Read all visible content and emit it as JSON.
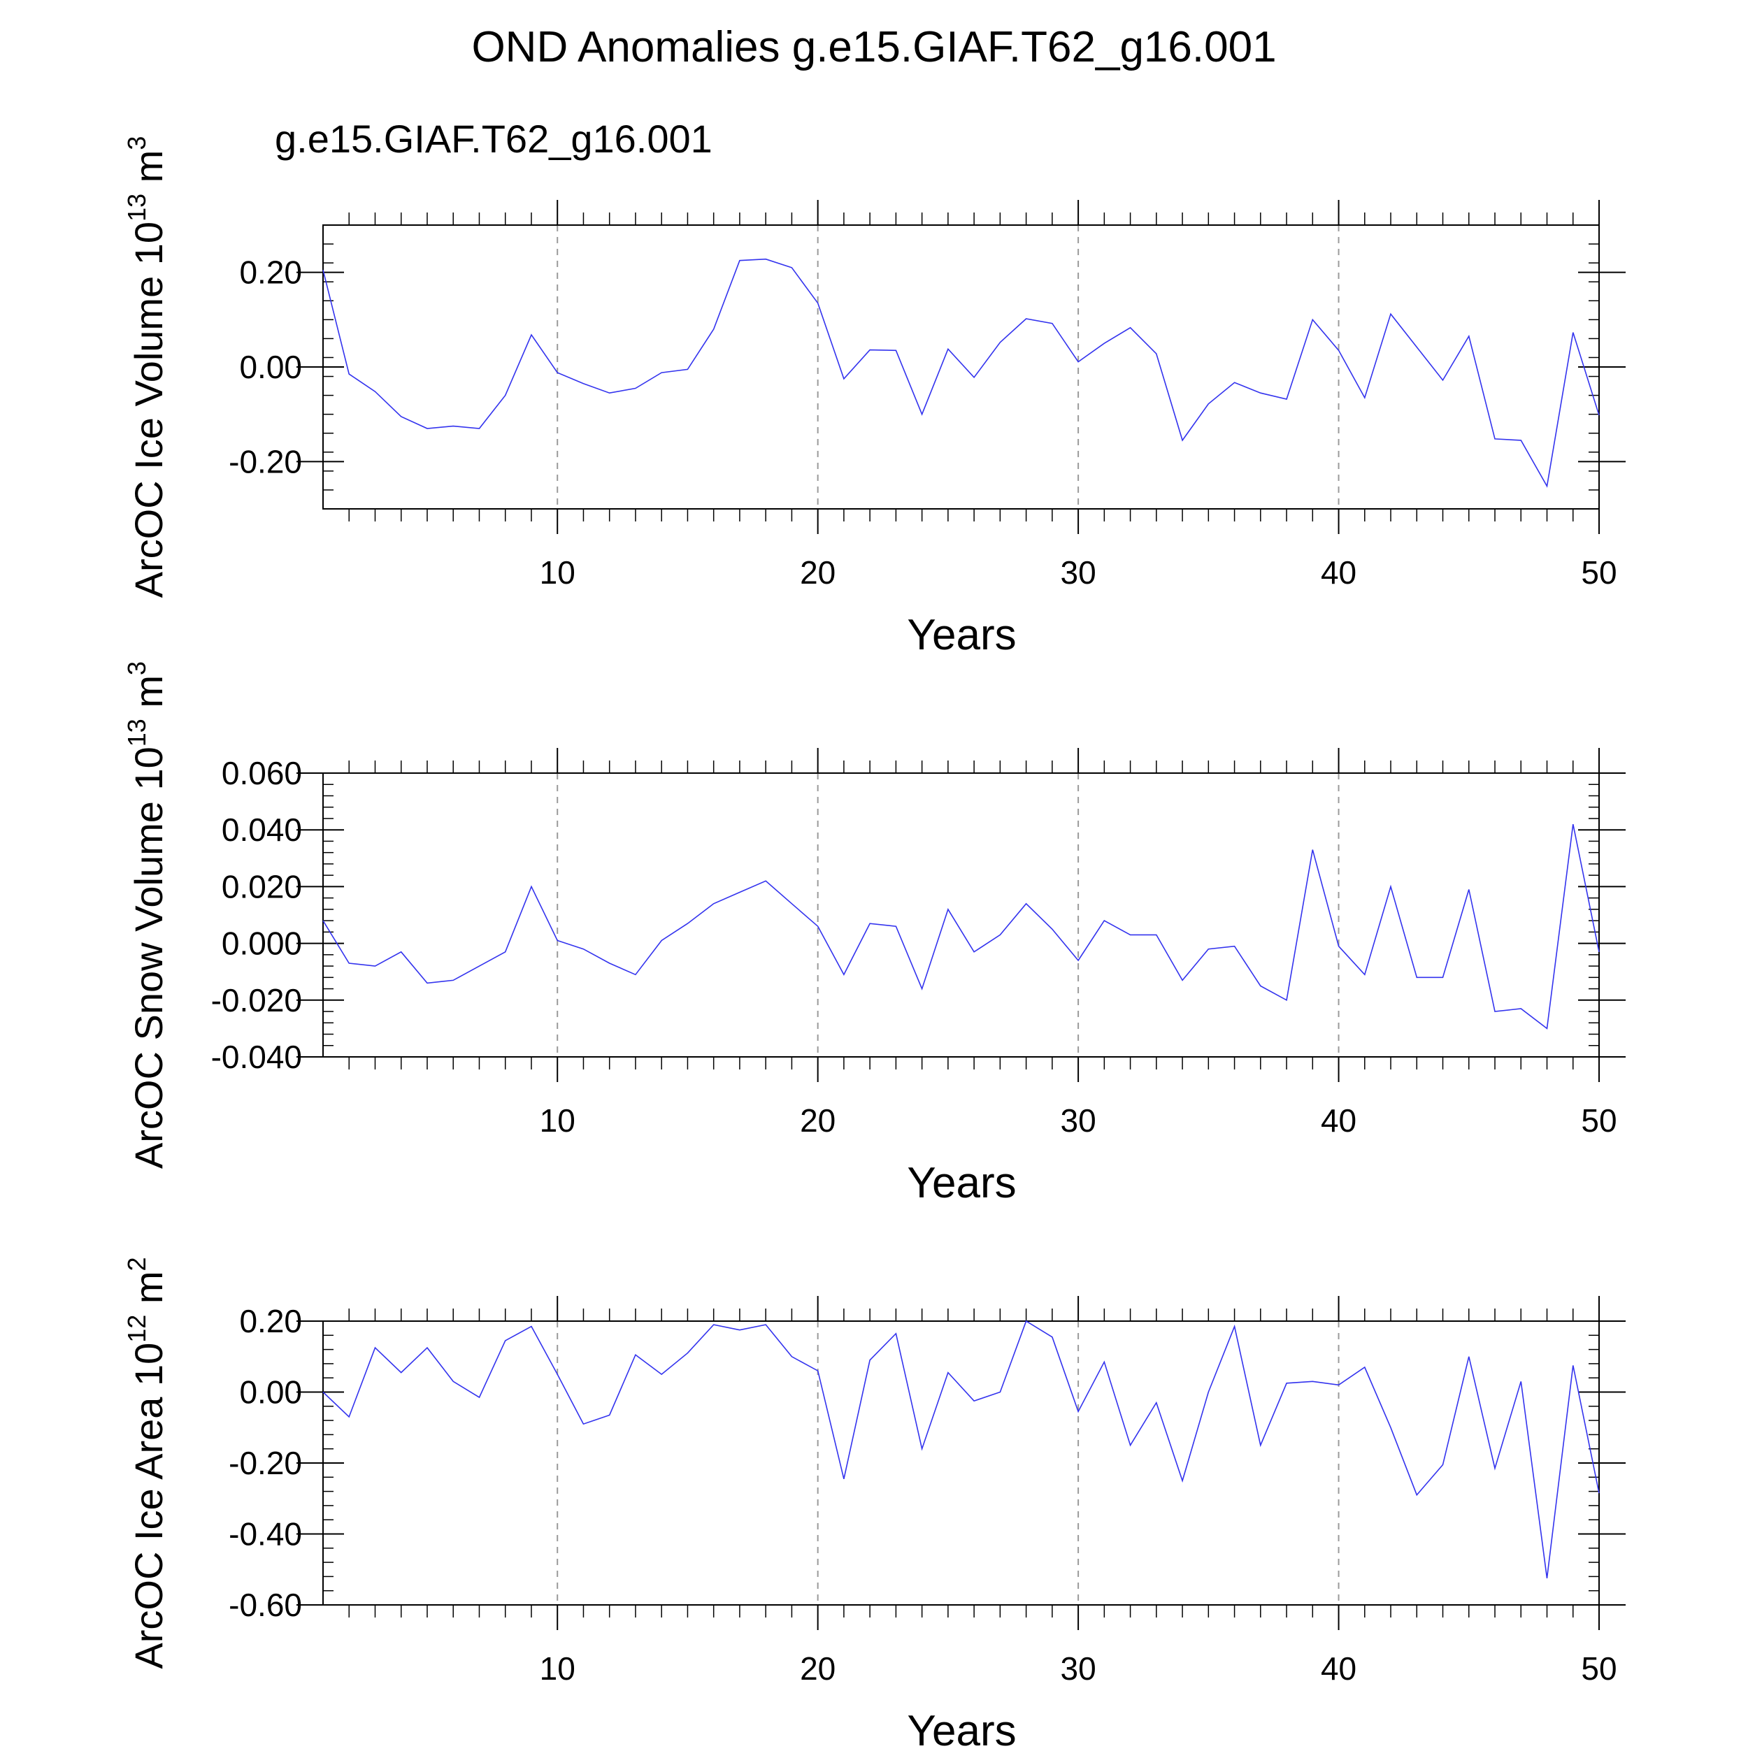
{
  "figure": {
    "title": "OND Anomalies g.e15.GIAF.T62_g16.001",
    "legend_label": "g.e15.GIAF.T62_g16.001",
    "series_color": "#3333ee",
    "legend_color": "#0000ff",
    "axis_color": "#000000",
    "grid_color": "#9a9a9a"
  },
  "chart_data": [
    {
      "type": "line",
      "title": "",
      "xlabel": "Years",
      "ylabel": "ArcOC Ice Volume 10",
      "ylabel_exp": "13",
      "ylabel_unit": " m",
      "ylabel_unit_exp": "3",
      "xlim": [
        1,
        50
      ],
      "ylim": [
        -0.3,
        0.3
      ],
      "xticks": [
        10,
        20,
        30,
        40,
        50
      ],
      "xtick_labels": [
        "10",
        "20",
        "30",
        "40",
        "50"
      ],
      "yticks": [
        -0.2,
        0.0,
        0.2
      ],
      "ytick_labels": [
        "-0.20",
        "0.00",
        "0.20"
      ],
      "y_minor_step": 0.04,
      "x": [
        1,
        2,
        3,
        4,
        5,
        6,
        7,
        8,
        9,
        10,
        11,
        12,
        13,
        14,
        15,
        16,
        17,
        18,
        19,
        20,
        21,
        22,
        23,
        24,
        25,
        26,
        27,
        28,
        29,
        30,
        31,
        32,
        33,
        34,
        35,
        36,
        37,
        38,
        39,
        40,
        41,
        42,
        43,
        44,
        45,
        46,
        47,
        48,
        49,
        50
      ],
      "series": [
        {
          "name": "g.e15.GIAF.T62_g16.001",
          "values": [
            0.205,
            -0.015,
            -0.052,
            -0.105,
            -0.13,
            -0.125,
            -0.13,
            -0.06,
            0.068,
            -0.012,
            -0.035,
            -0.055,
            -0.045,
            -0.012,
            -0.005,
            0.08,
            0.225,
            0.228,
            0.21,
            0.135,
            -0.025,
            0.036,
            0.035,
            -0.1,
            0.038,
            -0.022,
            0.052,
            0.102,
            0.092,
            0.011,
            0.05,
            0.083,
            0.028,
            -0.155,
            -0.078,
            -0.033,
            -0.055,
            -0.068,
            0.1,
            0.035,
            -0.065,
            0.112,
            0.042,
            -0.028,
            0.065,
            -0.152,
            -0.155,
            -0.252,
            0.073,
            -0.102
          ]
        }
      ]
    },
    {
      "type": "line",
      "title": "",
      "xlabel": "Years",
      "ylabel": "ArcOC Snow Volume 10",
      "ylabel_exp": "13",
      "ylabel_unit": " m",
      "ylabel_unit_exp": "3",
      "xlim": [
        1,
        50
      ],
      "ylim": [
        -0.04,
        0.06
      ],
      "xticks": [
        10,
        20,
        30,
        40,
        50
      ],
      "xtick_labels": [
        "10",
        "20",
        "30",
        "40",
        "50"
      ],
      "yticks": [
        -0.04,
        -0.02,
        0.0,
        0.02,
        0.04,
        0.06
      ],
      "ytick_labels": [
        "-0.040",
        "-0.020",
        "0.000",
        "0.020",
        "0.040",
        "0.060"
      ],
      "y_minor_step": 0.004,
      "x": [
        1,
        2,
        3,
        4,
        5,
        6,
        7,
        8,
        9,
        10,
        11,
        12,
        13,
        14,
        15,
        16,
        17,
        18,
        19,
        20,
        21,
        22,
        23,
        24,
        25,
        26,
        27,
        28,
        29,
        30,
        31,
        32,
        33,
        34,
        35,
        36,
        37,
        38,
        39,
        40,
        41,
        42,
        43,
        44,
        45,
        46,
        47,
        48,
        49,
        50
      ],
      "series": [
        {
          "name": "g.e15.GIAF.T62_g16.001",
          "values": [
            0.008,
            -0.007,
            -0.008,
            -0.003,
            -0.014,
            -0.013,
            -0.008,
            -0.003,
            0.02,
            0.001,
            -0.002,
            -0.007,
            -0.011,
            0.001,
            0.007,
            0.014,
            0.018,
            0.022,
            0.014,
            0.006,
            -0.011,
            0.007,
            0.006,
            -0.016,
            0.012,
            -0.003,
            0.003,
            0.014,
            0.005,
            -0.006,
            0.008,
            0.003,
            0.003,
            -0.013,
            -0.002,
            -0.001,
            -0.015,
            -0.02,
            0.033,
            -0.001,
            -0.011,
            0.02,
            -0.012,
            -0.012,
            0.019,
            -0.024,
            -0.023,
            -0.03,
            0.042,
            -0.003
          ]
        }
      ]
    },
    {
      "type": "line",
      "title": "",
      "xlabel": "Years",
      "ylabel": "ArcOC Ice Area 10",
      "ylabel_exp": "12",
      "ylabel_unit": " m",
      "ylabel_unit_exp": "2",
      "xlim": [
        1,
        50
      ],
      "ylim": [
        -0.6,
        0.2
      ],
      "xticks": [
        10,
        20,
        30,
        40,
        50
      ],
      "xtick_labels": [
        "10",
        "20",
        "30",
        "40",
        "50"
      ],
      "yticks": [
        -0.6,
        -0.4,
        -0.2,
        0.0,
        0.2
      ],
      "ytick_labels": [
        "-0.60",
        "-0.40",
        "-0.20",
        "0.00",
        "0.20"
      ],
      "y_minor_step": 0.04,
      "x": [
        1,
        2,
        3,
        4,
        5,
        6,
        7,
        8,
        9,
        10,
        11,
        12,
        13,
        14,
        15,
        16,
        17,
        18,
        19,
        20,
        21,
        22,
        23,
        24,
        25,
        26,
        27,
        28,
        29,
        30,
        31,
        32,
        33,
        34,
        35,
        36,
        37,
        38,
        39,
        40,
        41,
        42,
        43,
        44,
        45,
        46,
        47,
        48,
        49,
        50
      ],
      "series": [
        {
          "name": "g.e15.GIAF.T62_g16.001",
          "values": [
            0.0,
            -0.07,
            0.125,
            0.055,
            0.125,
            0.03,
            -0.015,
            0.145,
            0.185,
            0.05,
            -0.09,
            -0.065,
            0.105,
            0.05,
            0.11,
            0.19,
            0.175,
            0.19,
            0.1,
            0.06,
            -0.245,
            0.09,
            0.165,
            -0.16,
            0.055,
            -0.025,
            0.0,
            0.2,
            0.155,
            -0.055,
            0.085,
            -0.15,
            -0.03,
            -0.25,
            0.0,
            0.185,
            -0.15,
            0.025,
            0.03,
            0.02,
            0.07,
            -0.1,
            -0.29,
            -0.205,
            0.1,
            -0.215,
            0.03,
            -0.525,
            0.075,
            -0.285
          ]
        }
      ]
    }
  ]
}
